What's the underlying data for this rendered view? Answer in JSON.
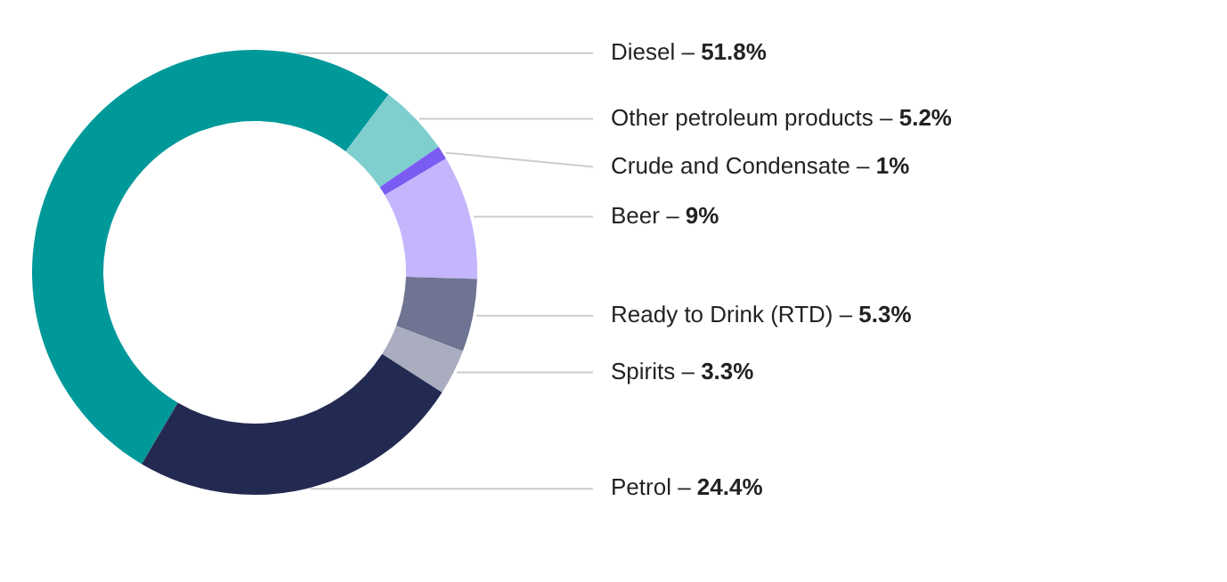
{
  "chart_data": {
    "type": "donut",
    "categories": [
      "Diesel –",
      "Other petroleum products –",
      "Crude and Condensate –",
      "Beer –",
      "Ready to Drink (RTD) –",
      "Spirits –",
      "Petrol –"
    ],
    "values": [
      51.8,
      5.2,
      1,
      9,
      5.3,
      3.3,
      24.4
    ],
    "value_labels": [
      "51.8%",
      "5.2%",
      "1%",
      "9%",
      "5.3%",
      "3.3%",
      "24.4%"
    ],
    "colors": [
      "#00999a",
      "#7fcfcf",
      "#7b5cf2",
      "#c4b5fd",
      "#6e7491",
      "#a9adbf",
      "#232a52"
    ],
    "legend": false
  }
}
